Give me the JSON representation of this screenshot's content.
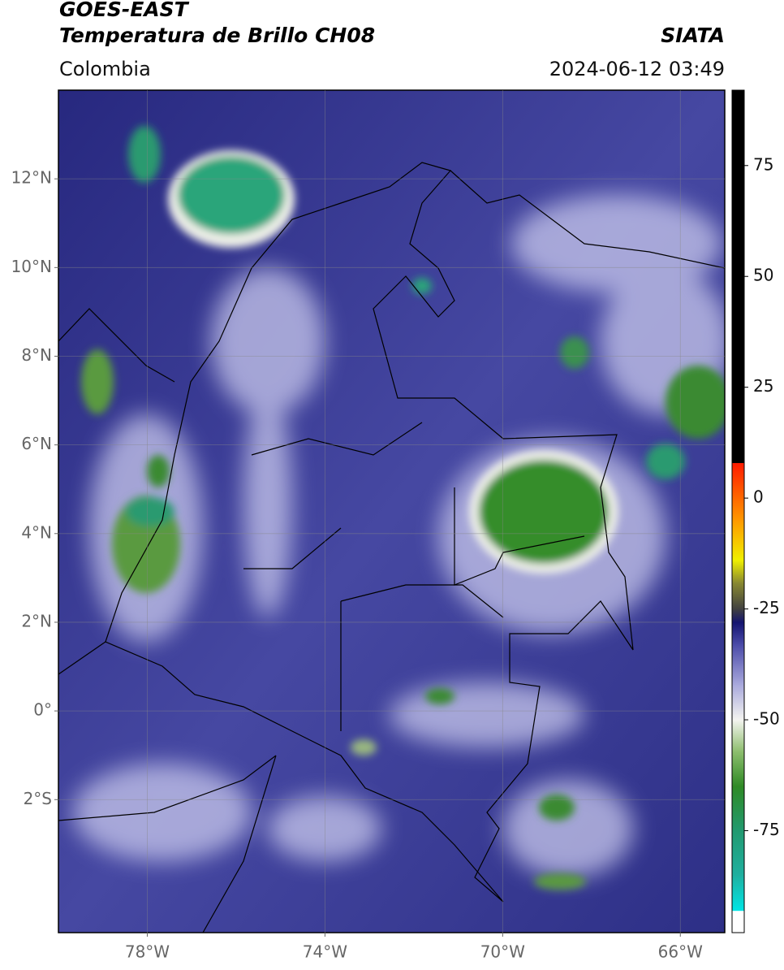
{
  "header": {
    "title": "GOES-EAST",
    "subtitle": "Temperatura de Brillo CH08",
    "source": "SIATA",
    "region": "Colombia",
    "datetime": "2024-06-12 03:49"
  },
  "map": {
    "xlim": [
      -80,
      -65
    ],
    "ylim": [
      -5,
      14
    ],
    "xticks": [
      {
        "value": -78,
        "label": "78°W"
      },
      {
        "value": -74,
        "label": "74°W"
      },
      {
        "value": -70,
        "label": "70°W"
      },
      {
        "value": -66,
        "label": "66°W"
      }
    ],
    "yticks": [
      {
        "value": -2,
        "label": "2°S"
      },
      {
        "value": 0,
        "label": "0°"
      },
      {
        "value": 2,
        "label": "2°N"
      },
      {
        "value": 4,
        "label": "4°N"
      },
      {
        "value": 6,
        "label": "6°N"
      },
      {
        "value": 8,
        "label": "8°N"
      },
      {
        "value": 10,
        "label": "10°N"
      },
      {
        "value": 12,
        "label": "12°N"
      }
    ],
    "grid": true,
    "colorbar": {
      "clim": [
        -98,
        92
      ],
      "ticks": [
        -75,
        -50,
        -25,
        0,
        25,
        50,
        75
      ],
      "stops": [
        {
          "value": -98,
          "color": "#ffffff"
        },
        {
          "value": -93,
          "color": "#ffffff"
        },
        {
          "value": -93,
          "color": "#00e5e5"
        },
        {
          "value": -85,
          "color": "#1fb0a0"
        },
        {
          "value": -75,
          "color": "#229a70"
        },
        {
          "value": -65,
          "color": "#2f8a25"
        },
        {
          "value": -57,
          "color": "#8fbf70"
        },
        {
          "value": -50,
          "color": "#f4f4f0"
        },
        {
          "value": -42,
          "color": "#a8a8dc"
        },
        {
          "value": -33,
          "color": "#4a4aa8"
        },
        {
          "value": -28,
          "color": "#141470"
        },
        {
          "value": -25,
          "color": "#404040"
        },
        {
          "value": -19,
          "color": "#8a8a30"
        },
        {
          "value": -14,
          "color": "#f0f000"
        },
        {
          "value": -5,
          "color": "#ff9900"
        },
        {
          "value": 8,
          "color": "#ff1a00"
        },
        {
          "value": 8,
          "color": "#000000"
        },
        {
          "value": 92,
          "color": "#000000"
        }
      ]
    }
  }
}
